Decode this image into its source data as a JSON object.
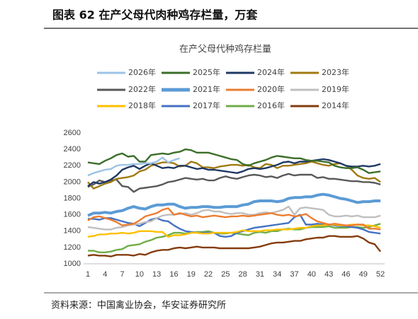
{
  "header": "图表 62 在产父母代肉种鸡存栏量，万套",
  "source": "资料来源：中国禽业协会，华安证券研究所",
  "chart_data": {
    "type": "line",
    "title": "在产父母代种鸡存栏量",
    "x": [
      1,
      2,
      3,
      4,
      5,
      6,
      7,
      8,
      9,
      10,
      11,
      12,
      13,
      14,
      15,
      16,
      17,
      18,
      19,
      20,
      21,
      22,
      23,
      24,
      25,
      26,
      27,
      28,
      29,
      30,
      31,
      32,
      33,
      34,
      35,
      36,
      37,
      38,
      39,
      40,
      41,
      42,
      43,
      44,
      45,
      46,
      47,
      48,
      49,
      50,
      51,
      52
    ],
    "xlim": [
      1,
      52
    ],
    "xticks": [
      1,
      4,
      7,
      10,
      13,
      16,
      19,
      22,
      25,
      28,
      31,
      34,
      37,
      40,
      43,
      46,
      49,
      52
    ],
    "ylim": [
      1000,
      2600
    ],
    "yticks": [
      1000,
      1200,
      1400,
      1600,
      1800,
      2000,
      2200,
      2400,
      2600
    ],
    "series": [
      {
        "name": "2026年",
        "color": "#9dc3e6",
        "values": [
          2080,
          2110,
          2130,
          2150,
          2160,
          2200,
          2210,
          2210,
          2220,
          2220,
          2230,
          2230,
          2250,
          2300,
          2240,
          2270,
          2290,
          null,
          null,
          null,
          null,
          null,
          null,
          null,
          null,
          null,
          null,
          null,
          null,
          null,
          null,
          null,
          null,
          null,
          null,
          null,
          null,
          null,
          null,
          null,
          null,
          null,
          null,
          null,
          null,
          null,
          null,
          null,
          null,
          null,
          null,
          null
        ]
      },
      {
        "name": "2025年",
        "color": "#3b6e2a",
        "values": [
          2240,
          2230,
          2220,
          2260,
          2290,
          2330,
          2350,
          2310,
          2320,
          2250,
          2250,
          2330,
          2340,
          2350,
          2340,
          2360,
          2370,
          2400,
          2390,
          2360,
          2360,
          2360,
          2340,
          2320,
          2300,
          2280,
          2270,
          2220,
          2200,
          2230,
          2250,
          2270,
          2300,
          2320,
          2310,
          2300,
          2290,
          2290,
          2270,
          2260,
          2260,
          2250,
          2240,
          2200,
          2180,
          2170,
          2170,
          2180,
          2150,
          2110,
          2120,
          2130
        ]
      },
      {
        "name": "2024年",
        "color": "#1f3864",
        "values": [
          1950,
          2000,
          1980,
          2000,
          2030,
          2080,
          2150,
          2180,
          2200,
          2160,
          2200,
          2230,
          2200,
          2170,
          2180,
          2170,
          2200,
          2200,
          2180,
          2160,
          2170,
          2150,
          2150,
          2140,
          2130,
          2120,
          2110,
          2130,
          2160,
          2170,
          2160,
          2170,
          2190,
          2210,
          2240,
          2250,
          2230,
          2250,
          2250,
          2260,
          2270,
          2280,
          2270,
          2250,
          2230,
          2200,
          2190,
          2190,
          2200,
          2190,
          2200,
          2220
        ]
      },
      {
        "name": "2023年",
        "color": "#a07a10",
        "values": [
          2000,
          1920,
          1950,
          1980,
          2000,
          2040,
          2050,
          2060,
          2080,
          2130,
          2150,
          2200,
          2220,
          2240,
          2240,
          2230,
          2190,
          2200,
          2250,
          2230,
          2180,
          2180,
          2170,
          2190,
          2200,
          2210,
          2210,
          2200,
          2210,
          2180,
          2170,
          2220,
          2210,
          2170,
          2200,
          2200,
          2210,
          2220,
          2230,
          2250,
          2230,
          2210,
          2200,
          2220,
          2230,
          2200,
          2150,
          2080,
          2050,
          2040,
          2050,
          2000
        ]
      },
      {
        "name": "2022年",
        "color": "#595959",
        "values": [
          1940,
          1970,
          2020,
          2000,
          2020,
          2030,
          1950,
          1940,
          1880,
          1920,
          1930,
          1940,
          1950,
          1970,
          2000,
          2010,
          2030,
          2050,
          2040,
          2030,
          2040,
          2020,
          2020,
          2050,
          2070,
          2050,
          2040,
          2060,
          2080,
          2090,
          2080,
          2060,
          2070,
          2050,
          2080,
          2100,
          2080,
          2090,
          2090,
          2090,
          2050,
          2060,
          2040,
          2040,
          2030,
          2020,
          2010,
          2010,
          2000,
          2000,
          1990,
          1970
        ]
      },
      {
        "name": "2021年",
        "color": "#5b9bd5",
        "values": [
          1590,
          1620,
          1620,
          1630,
          1620,
          1640,
          1650,
          1680,
          1700,
          1680,
          1670,
          1700,
          1720,
          1720,
          1730,
          1730,
          1700,
          1680,
          1690,
          1690,
          1700,
          1700,
          1690,
          1690,
          1700,
          1700,
          1700,
          1720,
          1730,
          1760,
          1770,
          1770,
          1770,
          1760,
          1770,
          1800,
          1810,
          1810,
          1820,
          1820,
          1840,
          1850,
          1840,
          1820,
          1800,
          1790,
          1770,
          1750,
          1760,
          1760,
          1770,
          1770
        ]
      },
      {
        "name": "2020年",
        "color": "#ed7d31",
        "values": [
          1530,
          1570,
          1580,
          1560,
          1540,
          1510,
          1470,
          1480,
          1490,
          1530,
          1580,
          1600,
          1620,
          1660,
          1680,
          1600,
          1620,
          1600,
          1580,
          1590,
          1570,
          1580,
          1590,
          1580,
          1570,
          1580,
          1580,
          1590,
          1580,
          1590,
          1600,
          1610,
          1620,
          1600,
          1590,
          1600,
          1580,
          1590,
          1610,
          1560,
          1520,
          1500,
          1480,
          1490,
          1480,
          1470,
          1470,
          1480,
          1480,
          1430,
          1430,
          1420
        ]
      },
      {
        "name": "2019年",
        "color": "#bfbfbf",
        "values": [
          1450,
          1440,
          1430,
          1420,
          1420,
          1440,
          1450,
          1470,
          1480,
          1490,
          1510,
          1520,
          1560,
          1590,
          1600,
          1600,
          1610,
          1620,
          1600,
          1620,
          1650,
          1660,
          1640,
          1640,
          1620,
          1610,
          1620,
          1620,
          1600,
          1600,
          1620,
          1630,
          1620,
          1640,
          1660,
          1700,
          1600,
          1680,
          1690,
          1680,
          1670,
          1660,
          1600,
          1580,
          1580,
          1590,
          1580,
          1590,
          1570,
          1570,
          1570,
          1590
        ]
      },
      {
        "name": "2018年",
        "color": "#ffc000",
        "values": [
          1330,
          1340,
          1360,
          1360,
          1370,
          1370,
          1380,
          1370,
          1380,
          1400,
          1400,
          1400,
          1390,
          1390,
          1330,
          1350,
          1350,
          1360,
          1380,
          1380,
          1370,
          1370,
          1380,
          1380,
          1380,
          1380,
          1390,
          1410,
          1400,
          1400,
          1400,
          1410,
          1410,
          1420,
          1420,
          1420,
          1430,
          1440,
          1440,
          1460,
          1470,
          1470,
          1480,
          1480,
          1470,
          1470,
          1480,
          1480,
          1470,
          1470,
          1460,
          1440
        ]
      },
      {
        "name": "2017年",
        "color": "#4472c4",
        "values": [
          1550,
          1550,
          1540,
          1560,
          1560,
          1540,
          1520,
          1500,
          1490,
          1460,
          1500,
          1540,
          1560,
          1530,
          1520,
          1470,
          1430,
          1400,
          1390,
          1380,
          1380,
          1380,
          1380,
          1340,
          1330,
          1340,
          1380,
          1400,
          1420,
          1440,
          1450,
          1460,
          1470,
          1480,
          1490,
          1500,
          1570,
          1600,
          1480,
          1480,
          1490,
          1480,
          1480,
          1470,
          1460,
          1460,
          1450,
          1440,
          1420,
          1390,
          1380,
          1370
        ]
      },
      {
        "name": "2016年",
        "color": "#70ad47",
        "values": [
          1160,
          1160,
          1140,
          1140,
          1150,
          1170,
          1180,
          1220,
          1230,
          1240,
          1270,
          1290,
          1320,
          1330,
          1350,
          1380,
          1380,
          1370,
          1380,
          1390,
          1390,
          1400,
          1380,
          1370,
          1370,
          1380,
          1370,
          1360,
          1350,
          1380,
          1390,
          1380,
          1400,
          1400,
          1420,
          1430,
          1420,
          1420,
          1440,
          1450,
          1450,
          1450,
          1460,
          1440,
          1440,
          1440,
          1450,
          1450,
          1440,
          1450,
          1470,
          1490
        ]
      },
      {
        "name": "2014年",
        "color": "#843c0c",
        "values": [
          1100,
          1110,
          1100,
          1100,
          1090,
          1110,
          1110,
          1110,
          1100,
          1120,
          1110,
          1140,
          1160,
          1170,
          1170,
          1190,
          1200,
          1190,
          1200,
          1210,
          1200,
          1200,
          1200,
          1190,
          1190,
          1190,
          1190,
          1190,
          1190,
          1200,
          1210,
          1230,
          1250,
          1260,
          1260,
          1270,
          1280,
          1280,
          1300,
          1310,
          1320,
          1320,
          1340,
          1340,
          1330,
          1330,
          1330,
          1340,
          1310,
          1260,
          1240,
          1150
        ]
      }
    ]
  }
}
